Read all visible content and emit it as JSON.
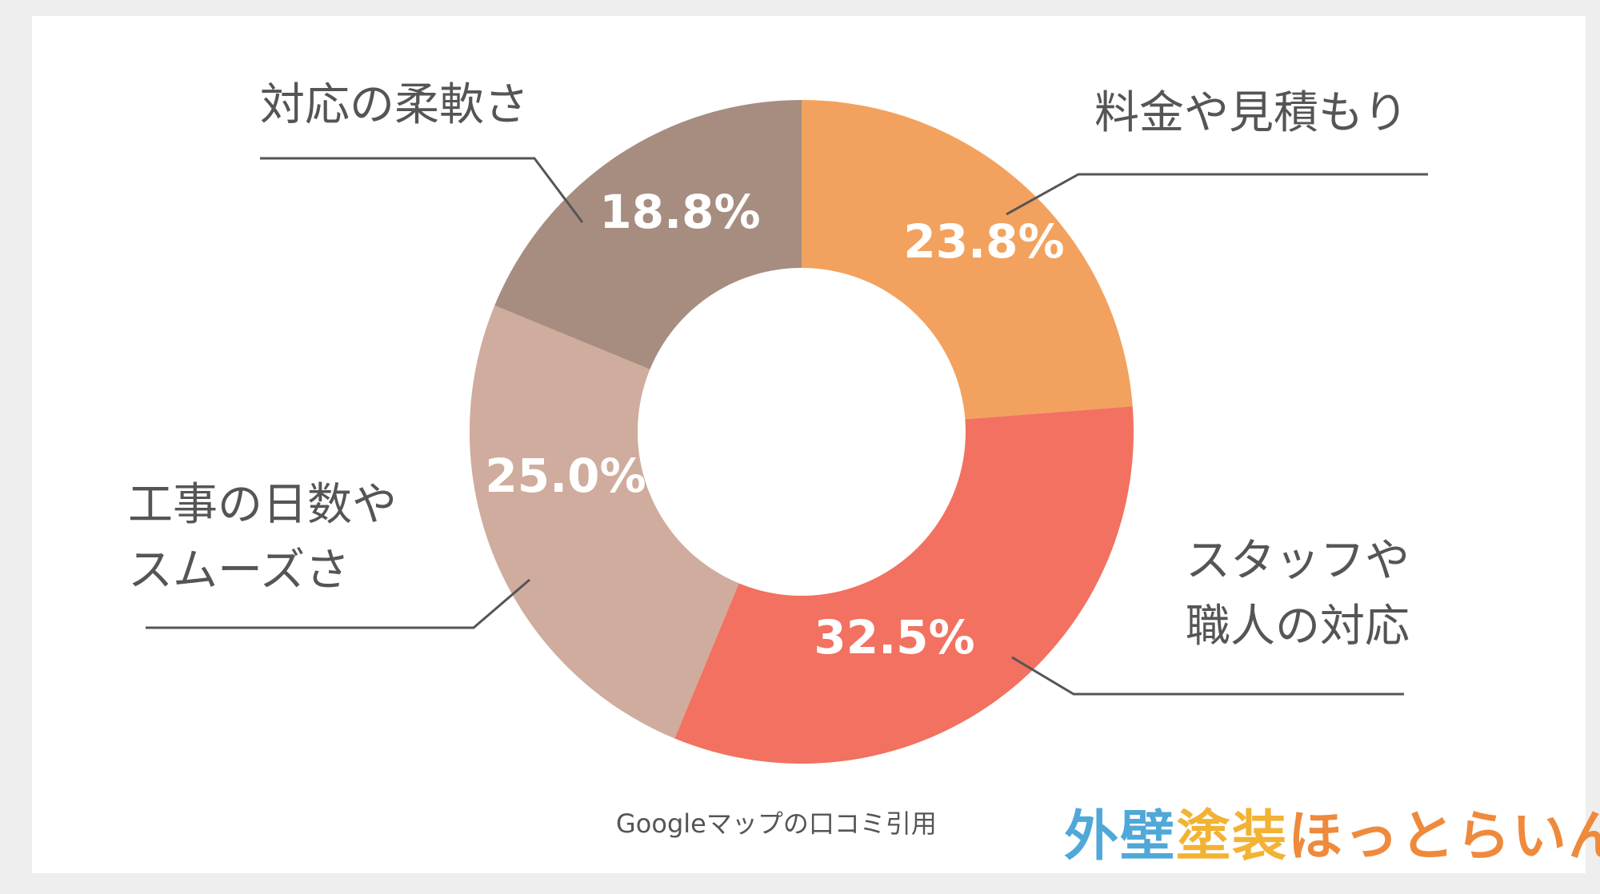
{
  "chart_data": {
    "type": "pie",
    "style": "donut",
    "start_angle_deg": 0,
    "direction": "clockwise",
    "slices": [
      {
        "label_lines": [
          "料金や見積もり"
        ],
        "value": 23.8,
        "display": "23.8%",
        "color": "#f2a25e"
      },
      {
        "label_lines": [
          "スタッフや",
          "職人の対応"
        ],
        "value": 32.5,
        "display": "32.5%",
        "color": "#f27160"
      },
      {
        "label_lines": [
          "工事の日数や",
          "スムーズさ"
        ],
        "value": 25.0,
        "display": "25.0%",
        "color": "#cfac9d"
      },
      {
        "label_lines": [
          "対応の柔軟さ"
        ],
        "value": 18.8,
        "display": "18.8%",
        "color": "#a78d80"
      }
    ],
    "legend": "none"
  },
  "source_note": "Googleマップの口コミ引用",
  "logo": {
    "text_part1": "外壁",
    "text_part2": "塗装",
    "text_part3": "ほっとらいん",
    "colors": [
      "#4fa8d8",
      "#f2b233",
      "#ef8a3c"
    ]
  }
}
